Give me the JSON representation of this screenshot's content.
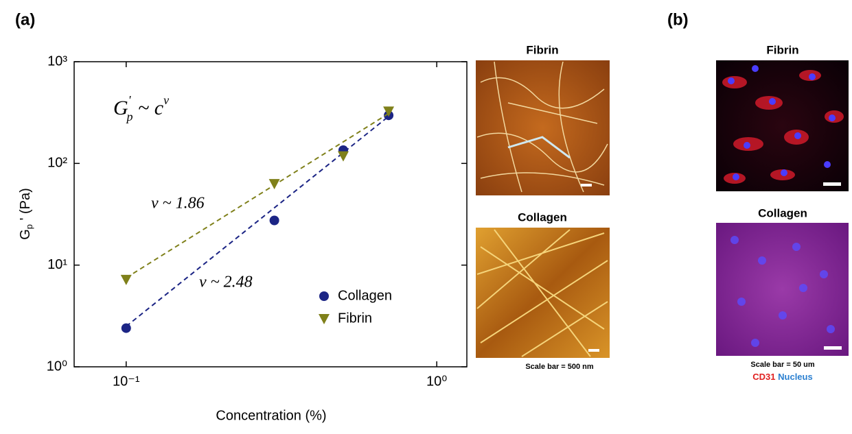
{
  "chart_data": {
    "type": "scatter",
    "ylabel": [
      "G",
      "p",
      " ' (Pa)"
    ],
    "xlabel": "Concentration (%)",
    "equation": [
      "G",
      "'",
      "p",
      " ~ c",
      "v"
    ],
    "annotations": [
      "v ~ 1.86",
      "v ~ 2.48"
    ],
    "x": [
      0.1,
      0.3,
      0.5,
      0.7
    ],
    "series": [
      {
        "name": "Collagen",
        "color": "#1c2585",
        "marker": "circle",
        "values": [
          2.4,
          27.5,
          135,
          297
        ],
        "fit": {
          "x": [
            0.1,
            0.7
          ],
          "values": [
            2.5,
            290
          ]
        }
      },
      {
        "name": "Fibrin",
        "color": "#7f801a",
        "marker": "triangle-down",
        "values": [
          7.2,
          63,
          118,
          325
        ],
        "fit": {
          "x": [
            0.1,
            0.7
          ],
          "values": [
            7.5,
            310
          ]
        }
      }
    ],
    "log_x": true,
    "log_y": true,
    "xlim": [
      0.068,
      1.25
    ],
    "ylim": [
      1,
      1000
    ],
    "xticks": [
      {
        "value": 0.1,
        "label": "10⁻¹"
      },
      {
        "value": 1,
        "label": "10⁰"
      }
    ],
    "yticks": [
      {
        "value": 1,
        "label": "10⁰"
      },
      {
        "value": 10,
        "label": "10¹"
      },
      {
        "value": 100,
        "label": "10²"
      },
      {
        "value": 1000,
        "label": "10³"
      }
    ],
    "legend": "lower right",
    "grid": false
  },
  "figure": {
    "panel_a": "(a)",
    "panel_b": "(b)",
    "afm_fibrin": "Fibrin",
    "afm_collagen": "Collagen",
    "afm_scale": "Scale bar = 500 nm",
    "fl_fibrin": "Fibrin",
    "fl_collagen": "Collagen",
    "fl_scale": "Scale bar = 50 um",
    "stain_red": "CD31",
    "stain_blue": "Nucleus"
  }
}
